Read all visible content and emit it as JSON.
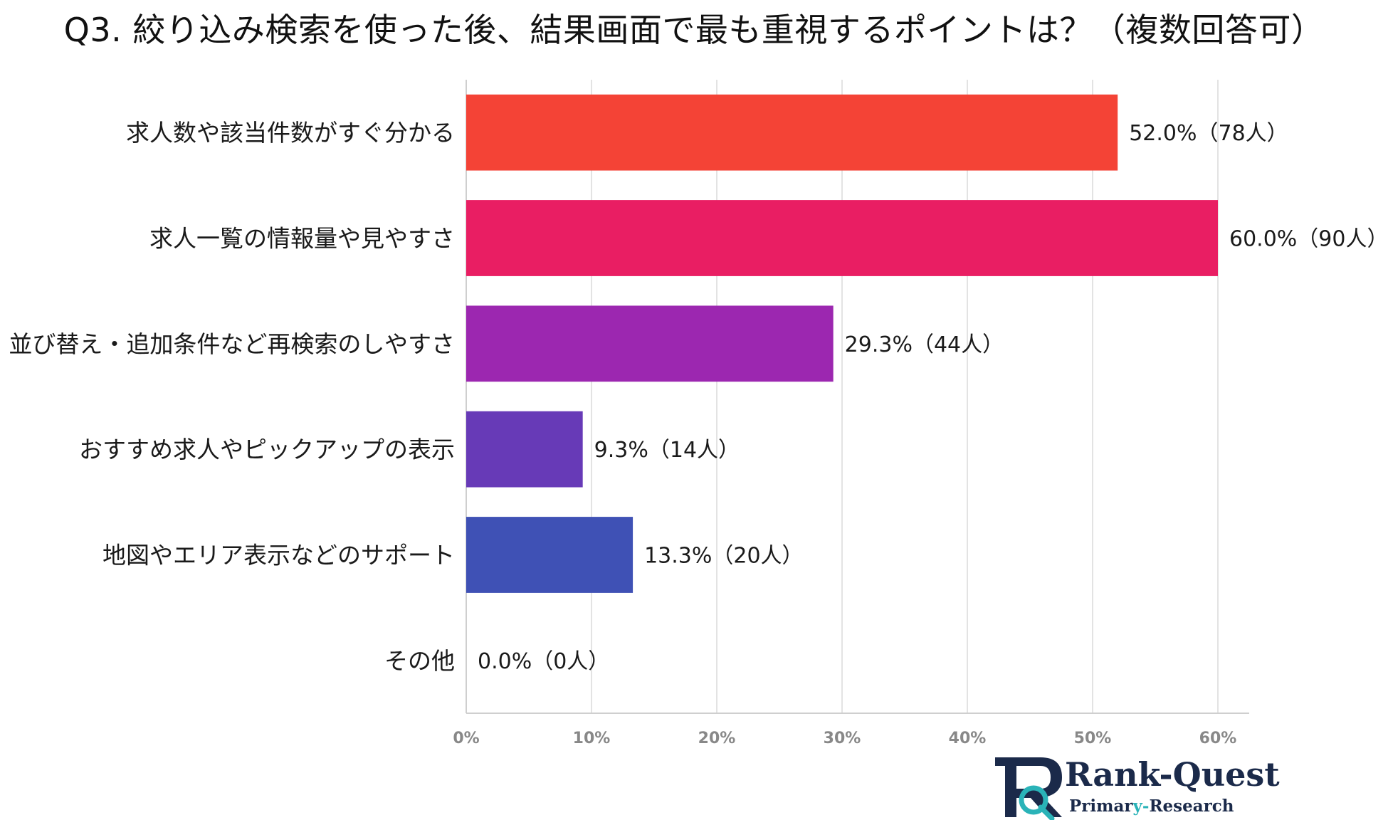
{
  "chart_data": {
    "type": "bar",
    "orientation": "horizontal",
    "title": "Q3. 絞り込み検索を使った後、結果画面で最も重視するポイントは？（複数回答可）",
    "categories": [
      "求人数や該当件数がすぐ分かる",
      "求人一覧の情報量や見やすさ",
      "並び替え・追加条件など再検索のしやすさ",
      "おすすめ求人やピックアップの表示",
      "地図やエリア表示などのサポート",
      "その他"
    ],
    "values": [
      52.0,
      60.0,
      29.3,
      9.3,
      13.3,
      0.0
    ],
    "value_labels": [
      "52.0%（78人）",
      "60.0%（90人）",
      "29.3%（44人）",
      "9.3%（14人）",
      "13.3%（20人）",
      "0.0%（0人）"
    ],
    "colors": [
      "#f44336",
      "#e91e63",
      "#9c27b0",
      "#673ab7",
      "#3f51b5",
      "#2196f3"
    ],
    "xlim": [
      0,
      62.5
    ],
    "xticks": [
      0,
      10,
      20,
      30,
      40,
      50,
      60
    ],
    "xtick_labels": [
      "0%",
      "10%",
      "20%",
      "30%",
      "40%",
      "50%",
      "60%"
    ],
    "grid": true,
    "xlabel": "",
    "ylabel": ""
  },
  "logo": {
    "brand": "Rank-Quest",
    "brand_part1": "Rank",
    "brand_part2": "-Quest",
    "subtitle_part1": "Primar",
    "subtitle_part2": "y-",
    "subtitle_part3": "Research",
    "primary_color": "#1b2a4a",
    "accent_color": "#2ab3b8"
  }
}
